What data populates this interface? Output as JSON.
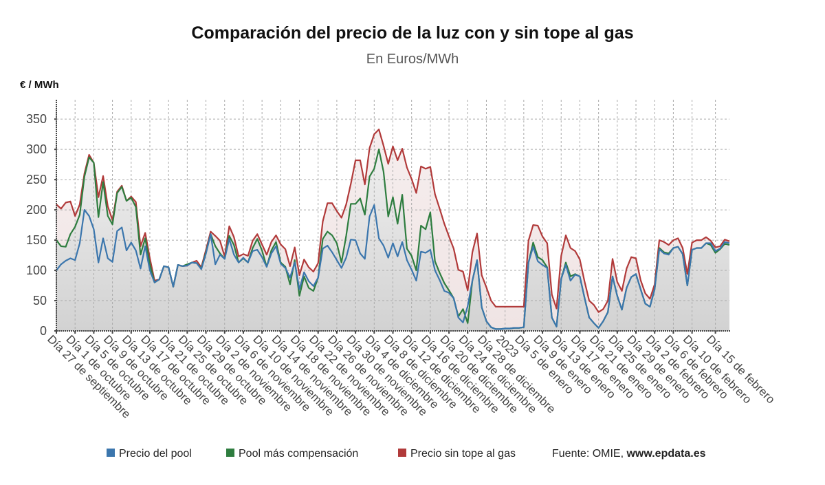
{
  "chart_data": {
    "type": "line",
    "title": "Comparación del precio de la luz con y sin tope al gas",
    "subtitle": "En Euros/MWh",
    "ylabel": "€ / MWh",
    "xlabel": "",
    "ylim": [
      0,
      382
    ],
    "yticks": [
      0,
      50,
      100,
      150,
      200,
      250,
      300,
      350
    ],
    "grid": true,
    "legend_position": "bottom",
    "x_start": "27 de septiembre",
    "n_days": 145,
    "xticks": [
      {
        "day": 0,
        "label": "Día 27 de septiembre"
      },
      {
        "day": 4,
        "label": "Día 1 de octubre"
      },
      {
        "day": 8,
        "label": "Día 5 de octubre"
      },
      {
        "day": 12,
        "label": "Día 9 de octubre"
      },
      {
        "day": 16,
        "label": "Día 13 de octubre"
      },
      {
        "day": 20,
        "label": "Día 17 de octubre"
      },
      {
        "day": 24,
        "label": "Día 21 de octubre"
      },
      {
        "day": 28,
        "label": "Día 25 de octubre"
      },
      {
        "day": 32,
        "label": "Día 29 de octubre"
      },
      {
        "day": 36,
        "label": "Día 2 de noviembre"
      },
      {
        "day": 40,
        "label": "Día 6 de noviembre"
      },
      {
        "day": 44,
        "label": "Día 10 de noviembre"
      },
      {
        "day": 48,
        "label": "Día 14 de noviembre"
      },
      {
        "day": 52,
        "label": "Día 18 de noviembre"
      },
      {
        "day": 56,
        "label": "Día 22 de noviembre"
      },
      {
        "day": 60,
        "label": "Día 26 de noviembre"
      },
      {
        "day": 64,
        "label": "Día 30 de noviembre"
      },
      {
        "day": 68,
        "label": "Día 4 de diciembre"
      },
      {
        "day": 72,
        "label": "Día 8 de diciembre"
      },
      {
        "day": 76,
        "label": "Día 12 de diciembre"
      },
      {
        "day": 80,
        "label": "Día 16 de diciembre"
      },
      {
        "day": 84,
        "label": "Día 20 de diciembre"
      },
      {
        "day": 88,
        "label": "Día 24 de diciembre"
      },
      {
        "day": 92,
        "label": "Día 28 de diciembre"
      },
      {
        "day": 96,
        "label": "2023"
      },
      {
        "day": 100,
        "label": "Día 5 de enero"
      },
      {
        "day": 104,
        "label": "Día 9 de enero"
      },
      {
        "day": 108,
        "label": "Día 13 de enero"
      },
      {
        "day": 112,
        "label": "Día 17 de enero"
      },
      {
        "day": 116,
        "label": "Día 21 de enero"
      },
      {
        "day": 120,
        "label": "Día 25 de enero"
      },
      {
        "day": 124,
        "label": "Día 29 de enero"
      },
      {
        "day": 128,
        "label": "Día 2 de febrero"
      },
      {
        "day": 132,
        "label": "Día 6 de febrero"
      },
      {
        "day": 136,
        "label": "Día 10 de febrero"
      },
      {
        "day": 141,
        "label": "Día 15 de febrero"
      }
    ],
    "series": [
      {
        "name": "Precio sin tope al gas",
        "color": "#b13a3a",
        "values": [
          209,
          202,
          212,
          214,
          190,
          209,
          260,
          291,
          278,
          221,
          256,
          206,
          183,
          230,
          240,
          215,
          222,
          213,
          140,
          162,
          120,
          83,
          85,
          107,
          105,
          73,
          109,
          107,
          108,
          113,
          116,
          105,
          134,
          164,
          157,
          149,
          123,
          173,
          155,
          123,
          127,
          124,
          149,
          160,
          143,
          126,
          147,
          158,
          143,
          135,
          107,
          138,
          92,
          118,
          105,
          98,
          112,
          181,
          211,
          211,
          198,
          187,
          209,
          243,
          282,
          282,
          242,
          302,
          325,
          333,
          306,
          276,
          305,
          282,
          301,
          270,
          251,
          228,
          272,
          268,
          271,
          226,
          202,
          177,
          156,
          136,
          101,
          98,
          67,
          130,
          161,
          92,
          72,
          50,
          40,
          40,
          40,
          40,
          40,
          40,
          40,
          149,
          175,
          174,
          156,
          145,
          60,
          37,
          124,
          158,
          137,
          132,
          118,
          82,
          50,
          43,
          31,
          36,
          50,
          119,
          81,
          66,
          103,
          122,
          120,
          84,
          62,
          53,
          77,
          150,
          147,
          142,
          150,
          153,
          137,
          94,
          146,
          150,
          150,
          155,
          149,
          138,
          140,
          151,
          148
        ]
      },
      {
        "name": "Pool más compensación",
        "color": "#2e7d3f",
        "values": [
          150,
          140,
          139,
          160,
          172,
          192,
          255,
          287,
          278,
          188,
          246,
          190,
          176,
          228,
          238,
          215,
          220,
          205,
          126,
          153,
          110,
          80,
          85,
          107,
          105,
          73,
          109,
          107,
          110,
          113,
          112,
          103,
          130,
          160,
          140,
          128,
          119,
          157,
          142,
          113,
          120,
          113,
          137,
          152,
          133,
          106,
          133,
          147,
          113,
          106,
          77,
          117,
          58,
          90,
          71,
          66,
          88,
          152,
          164,
          158,
          145,
          113,
          157,
          210,
          210,
          219,
          192,
          255,
          268,
          300,
          263,
          189,
          221,
          177,
          225,
          136,
          124,
          100,
          174,
          168,
          196,
          115,
          96,
          79,
          67,
          54,
          24,
          36,
          13,
          83,
          117,
          39,
          16,
          6,
          3,
          3,
          4,
          4,
          5,
          5,
          6,
          113,
          146,
          122,
          117,
          105,
          22,
          7,
          86,
          113,
          90,
          94,
          90,
          55,
          22,
          13,
          5,
          16,
          31,
          90,
          58,
          35,
          71,
          89,
          94,
          69,
          45,
          40,
          69,
          137,
          130,
          128,
          137,
          139,
          127,
          75,
          134,
          137,
          137,
          145,
          142,
          129,
          135,
          144,
          142
        ]
      },
      {
        "name": "Precio del pool",
        "color": "#3b76ad",
        "values": [
          100,
          110,
          116,
          120,
          117,
          145,
          200,
          190,
          168,
          113,
          153,
          120,
          114,
          165,
          171,
          133,
          146,
          133,
          103,
          140,
          100,
          80,
          85,
          107,
          105,
          73,
          109,
          107,
          108,
          113,
          112,
          102,
          128,
          160,
          110,
          126,
          119,
          152,
          126,
          113,
          121,
          113,
          132,
          134,
          122,
          106,
          128,
          140,
          111,
          104,
          88,
          113,
          69,
          97,
          82,
          74,
          88,
          136,
          141,
          130,
          117,
          104,
          121,
          151,
          150,
          128,
          119,
          189,
          208,
          153,
          141,
          121,
          145,
          123,
          147,
          117,
          101,
          83,
          131,
          129,
          134,
          100,
          84,
          66,
          63,
          54,
          22,
          14,
          41,
          83,
          117,
          39,
          16,
          6,
          3,
          3,
          4,
          4,
          5,
          5,
          6,
          113,
          139,
          115,
          109,
          104,
          22,
          7,
          86,
          109,
          83,
          93,
          90,
          55,
          22,
          13,
          5,
          16,
          31,
          90,
          58,
          35,
          71,
          89,
          94,
          69,
          45,
          40,
          69,
          135,
          128,
          126,
          137,
          139,
          127,
          75,
          134,
          137,
          137,
          145,
          145,
          132,
          136,
          147,
          145
        ]
      }
    ],
    "legend": [
      {
        "label": "Precio del pool",
        "color": "#3b76ad"
      },
      {
        "label": "Pool más compensación",
        "color": "#2e7d3f"
      },
      {
        "label": "Precio sin tope al gas",
        "color": "#b13a3a"
      }
    ],
    "source_prefix": "Fuente: OMIE, ",
    "source_site": "www.epdata.es"
  }
}
